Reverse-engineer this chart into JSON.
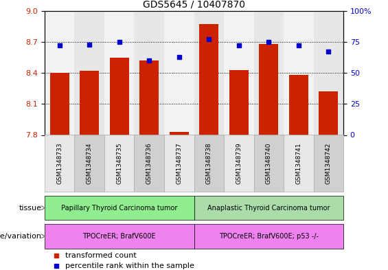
{
  "title": "GDS5645 / 10407870",
  "samples": [
    "GSM1348733",
    "GSM1348734",
    "GSM1348735",
    "GSM1348736",
    "GSM1348737",
    "GSM1348738",
    "GSM1348739",
    "GSM1348740",
    "GSM1348741",
    "GSM1348742"
  ],
  "bar_values": [
    8.4,
    8.42,
    8.55,
    8.52,
    7.83,
    8.87,
    8.43,
    8.68,
    8.38,
    8.22
  ],
  "percentile_values": [
    72,
    73,
    75,
    60,
    63,
    77,
    72,
    75,
    72,
    67
  ],
  "ylim_left": [
    7.8,
    9.0
  ],
  "ylim_right": [
    0,
    100
  ],
  "yticks_left": [
    7.8,
    8.1,
    8.4,
    8.7,
    9.0
  ],
  "yticks_right": [
    0,
    25,
    50,
    75,
    100
  ],
  "bar_color": "#cc2200",
  "dot_color": "#0000cc",
  "tissue_groups": [
    {
      "label": "Papillary Thyroid Carcinoma tumor",
      "start": 0,
      "end": 5,
      "color": "#90ee90"
    },
    {
      "label": "Anaplastic Thyroid Carcinoma tumor",
      "start": 5,
      "end": 10,
      "color": "#aaddaa"
    }
  ],
  "genotype_groups": [
    {
      "label": "TPOCreER; BrafV600E",
      "start": 0,
      "end": 5,
      "color": "#ee82ee"
    },
    {
      "label": "TPOCreER; BrafV600E; p53 -/-",
      "start": 5,
      "end": 10,
      "color": "#ee82ee"
    }
  ],
  "tissue_label": "tissue",
  "genotype_label": "genotype/variation",
  "legend_items": [
    {
      "label": "transformed count",
      "color": "#cc2200"
    },
    {
      "label": "percentile rank within the sample",
      "color": "#0000cc"
    }
  ],
  "bar_color_left": "#cc2200",
  "tick_color_right": "#0000cc",
  "col_bg_even": "#e8e8e8",
  "col_bg_odd": "#d0d0d0"
}
